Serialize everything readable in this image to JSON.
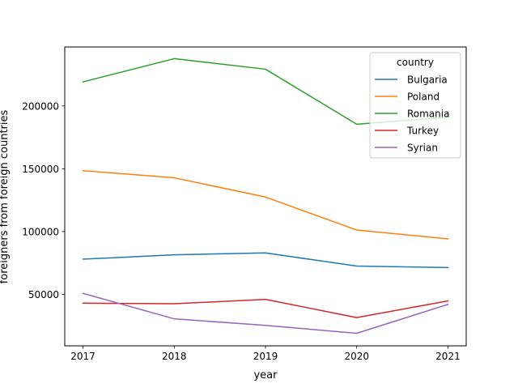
{
  "chart_data": {
    "type": "line",
    "title": "",
    "xlabel": "year",
    "ylabel": "foreigners from foreign countries",
    "x": [
      2017,
      2018,
      2019,
      2020,
      2021
    ],
    "xlim": [
      2016.8,
      2021.2
    ],
    "ylim": [
      9000,
      247000
    ],
    "xticks": [
      2017,
      2018,
      2019,
      2020,
      2021
    ],
    "yticks": [
      50000,
      100000,
      150000,
      200000
    ],
    "grid": false,
    "legend": {
      "title": "country",
      "placement": "top-right"
    },
    "series": [
      {
        "name": "Bulgaria",
        "color": "#1f77b4",
        "values": [
          78000,
          81500,
          83000,
          72500,
          71300
        ]
      },
      {
        "name": "Poland",
        "color": "#ff7f0e",
        "values": [
          148500,
          142800,
          127500,
          101200,
          94200
        ]
      },
      {
        "name": "Romania",
        "color": "#2ca02c",
        "values": [
          219200,
          237700,
          229300,
          185500,
          191000
        ]
      },
      {
        "name": "Turkey",
        "color": "#d62728",
        "values": [
          43000,
          42500,
          46000,
          31500,
          44800
        ]
      },
      {
        "name": "Syrian",
        "color": "#9467bd",
        "values": [
          50800,
          30500,
          25300,
          19000,
          42000
        ]
      }
    ]
  }
}
